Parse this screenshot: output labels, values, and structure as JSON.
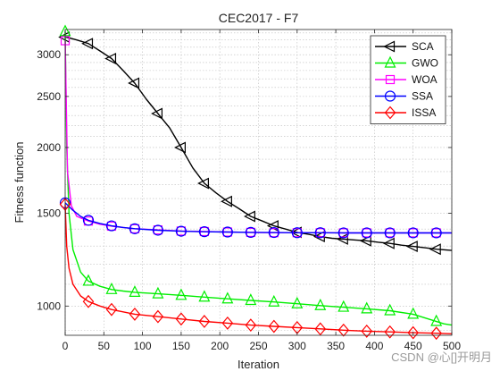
{
  "chart_data": {
    "type": "line",
    "title": "CEC2017 - F7",
    "xlabel": "Iteration",
    "ylabel": "Fitness function",
    "xlim": [
      0,
      500
    ],
    "ylim": [
      880,
      3350
    ],
    "yscale": "log",
    "grid": true,
    "legend_position": "top-right",
    "x_ticks": [
      0,
      50,
      100,
      150,
      200,
      250,
      300,
      350,
      400,
      450,
      500
    ],
    "x_tick_labels": [
      "0",
      "50",
      "100",
      "150",
      "200",
      "250",
      "300",
      "350",
      "400",
      "450",
      "500"
    ],
    "y_ticks": [
      1000,
      1500,
      2000,
      2500,
      3000
    ],
    "y_tick_labels": [
      "1000",
      "1500",
      "2000",
      "2500",
      "3000"
    ],
    "series": [
      {
        "name": "SCA",
        "color": "#000000",
        "marker": "triangle-left",
        "x": [
          0,
          5,
          15,
          30,
          45,
          60,
          75,
          90,
          105,
          120,
          135,
          150,
          165,
          180,
          195,
          210,
          225,
          240,
          255,
          270,
          285,
          300,
          315,
          330,
          345,
          360,
          375,
          390,
          405,
          420,
          435,
          450,
          465,
          480,
          500
        ],
        "y": [
          3240,
          3230,
          3200,
          3150,
          3050,
          2950,
          2800,
          2650,
          2470,
          2320,
          2180,
          2000,
          1830,
          1710,
          1640,
          1580,
          1530,
          1480,
          1450,
          1420,
          1400,
          1380,
          1368,
          1355,
          1345,
          1340,
          1335,
          1330,
          1322,
          1315,
          1305,
          1298,
          1290,
          1282,
          1275
        ]
      },
      {
        "name": "GWO",
        "color": "#00ee00",
        "marker": "triangle-up",
        "x": [
          0,
          2,
          5,
          10,
          20,
          30,
          45,
          60,
          75,
          90,
          120,
          150,
          180,
          210,
          240,
          270,
          300,
          330,
          360,
          390,
          420,
          450,
          470,
          490,
          500
        ],
        "y": [
          3320,
          2000,
          1500,
          1280,
          1160,
          1115,
          1090,
          1075,
          1068,
          1062,
          1055,
          1048,
          1040,
          1032,
          1025,
          1018,
          1010,
          1002,
          995,
          988,
          980,
          965,
          945,
          925,
          920
        ]
      },
      {
        "name": "WOA",
        "color": "#ff00ff",
        "marker": "square",
        "x": [
          0,
          3,
          8,
          15,
          30,
          45,
          60,
          75,
          90,
          120,
          150,
          180,
          210,
          240,
          270,
          300,
          330,
          360,
          390,
          420,
          450,
          480,
          500
        ],
        "y": [
          3190,
          1800,
          1550,
          1480,
          1450,
          1430,
          1418,
          1410,
          1402,
          1395,
          1388,
          1385,
          1382,
          1380,
          1378,
          1378,
          1378,
          1377,
          1377,
          1377,
          1377,
          1377,
          1377
        ]
      },
      {
        "name": "SSA",
        "color": "#0000ff",
        "marker": "circle",
        "x": [
          0,
          10,
          20,
          30,
          45,
          60,
          75,
          90,
          120,
          150,
          180,
          210,
          240,
          270,
          300,
          330,
          360,
          390,
          420,
          450,
          480,
          500
        ],
        "y": [
          1570,
          1520,
          1480,
          1455,
          1435,
          1420,
          1410,
          1402,
          1393,
          1387,
          1384,
          1382,
          1380,
          1379,
          1378,
          1378,
          1377,
          1377,
          1377,
          1377,
          1377,
          1377
        ]
      },
      {
        "name": "ISSA",
        "color": "#ff0000",
        "marker": "diamond",
        "x": [
          0,
          2,
          5,
          10,
          20,
          30,
          45,
          60,
          75,
          90,
          120,
          150,
          180,
          210,
          240,
          270,
          300,
          330,
          360,
          390,
          420,
          450,
          480,
          500
        ],
        "y": [
          1560,
          1300,
          1180,
          1100,
          1045,
          1020,
          1000,
          985,
          975,
          965,
          955,
          945,
          935,
          928,
          920,
          915,
          910,
          905,
          900,
          896,
          893,
          890,
          888,
          886
        ]
      }
    ],
    "markers_x": [
      0,
      30,
      60,
      90,
      120,
      150,
      180,
      210,
      240,
      270,
      300,
      330,
      360,
      390,
      420,
      450,
      480
    ]
  },
  "watermark": "CSDN @心[]开明月"
}
